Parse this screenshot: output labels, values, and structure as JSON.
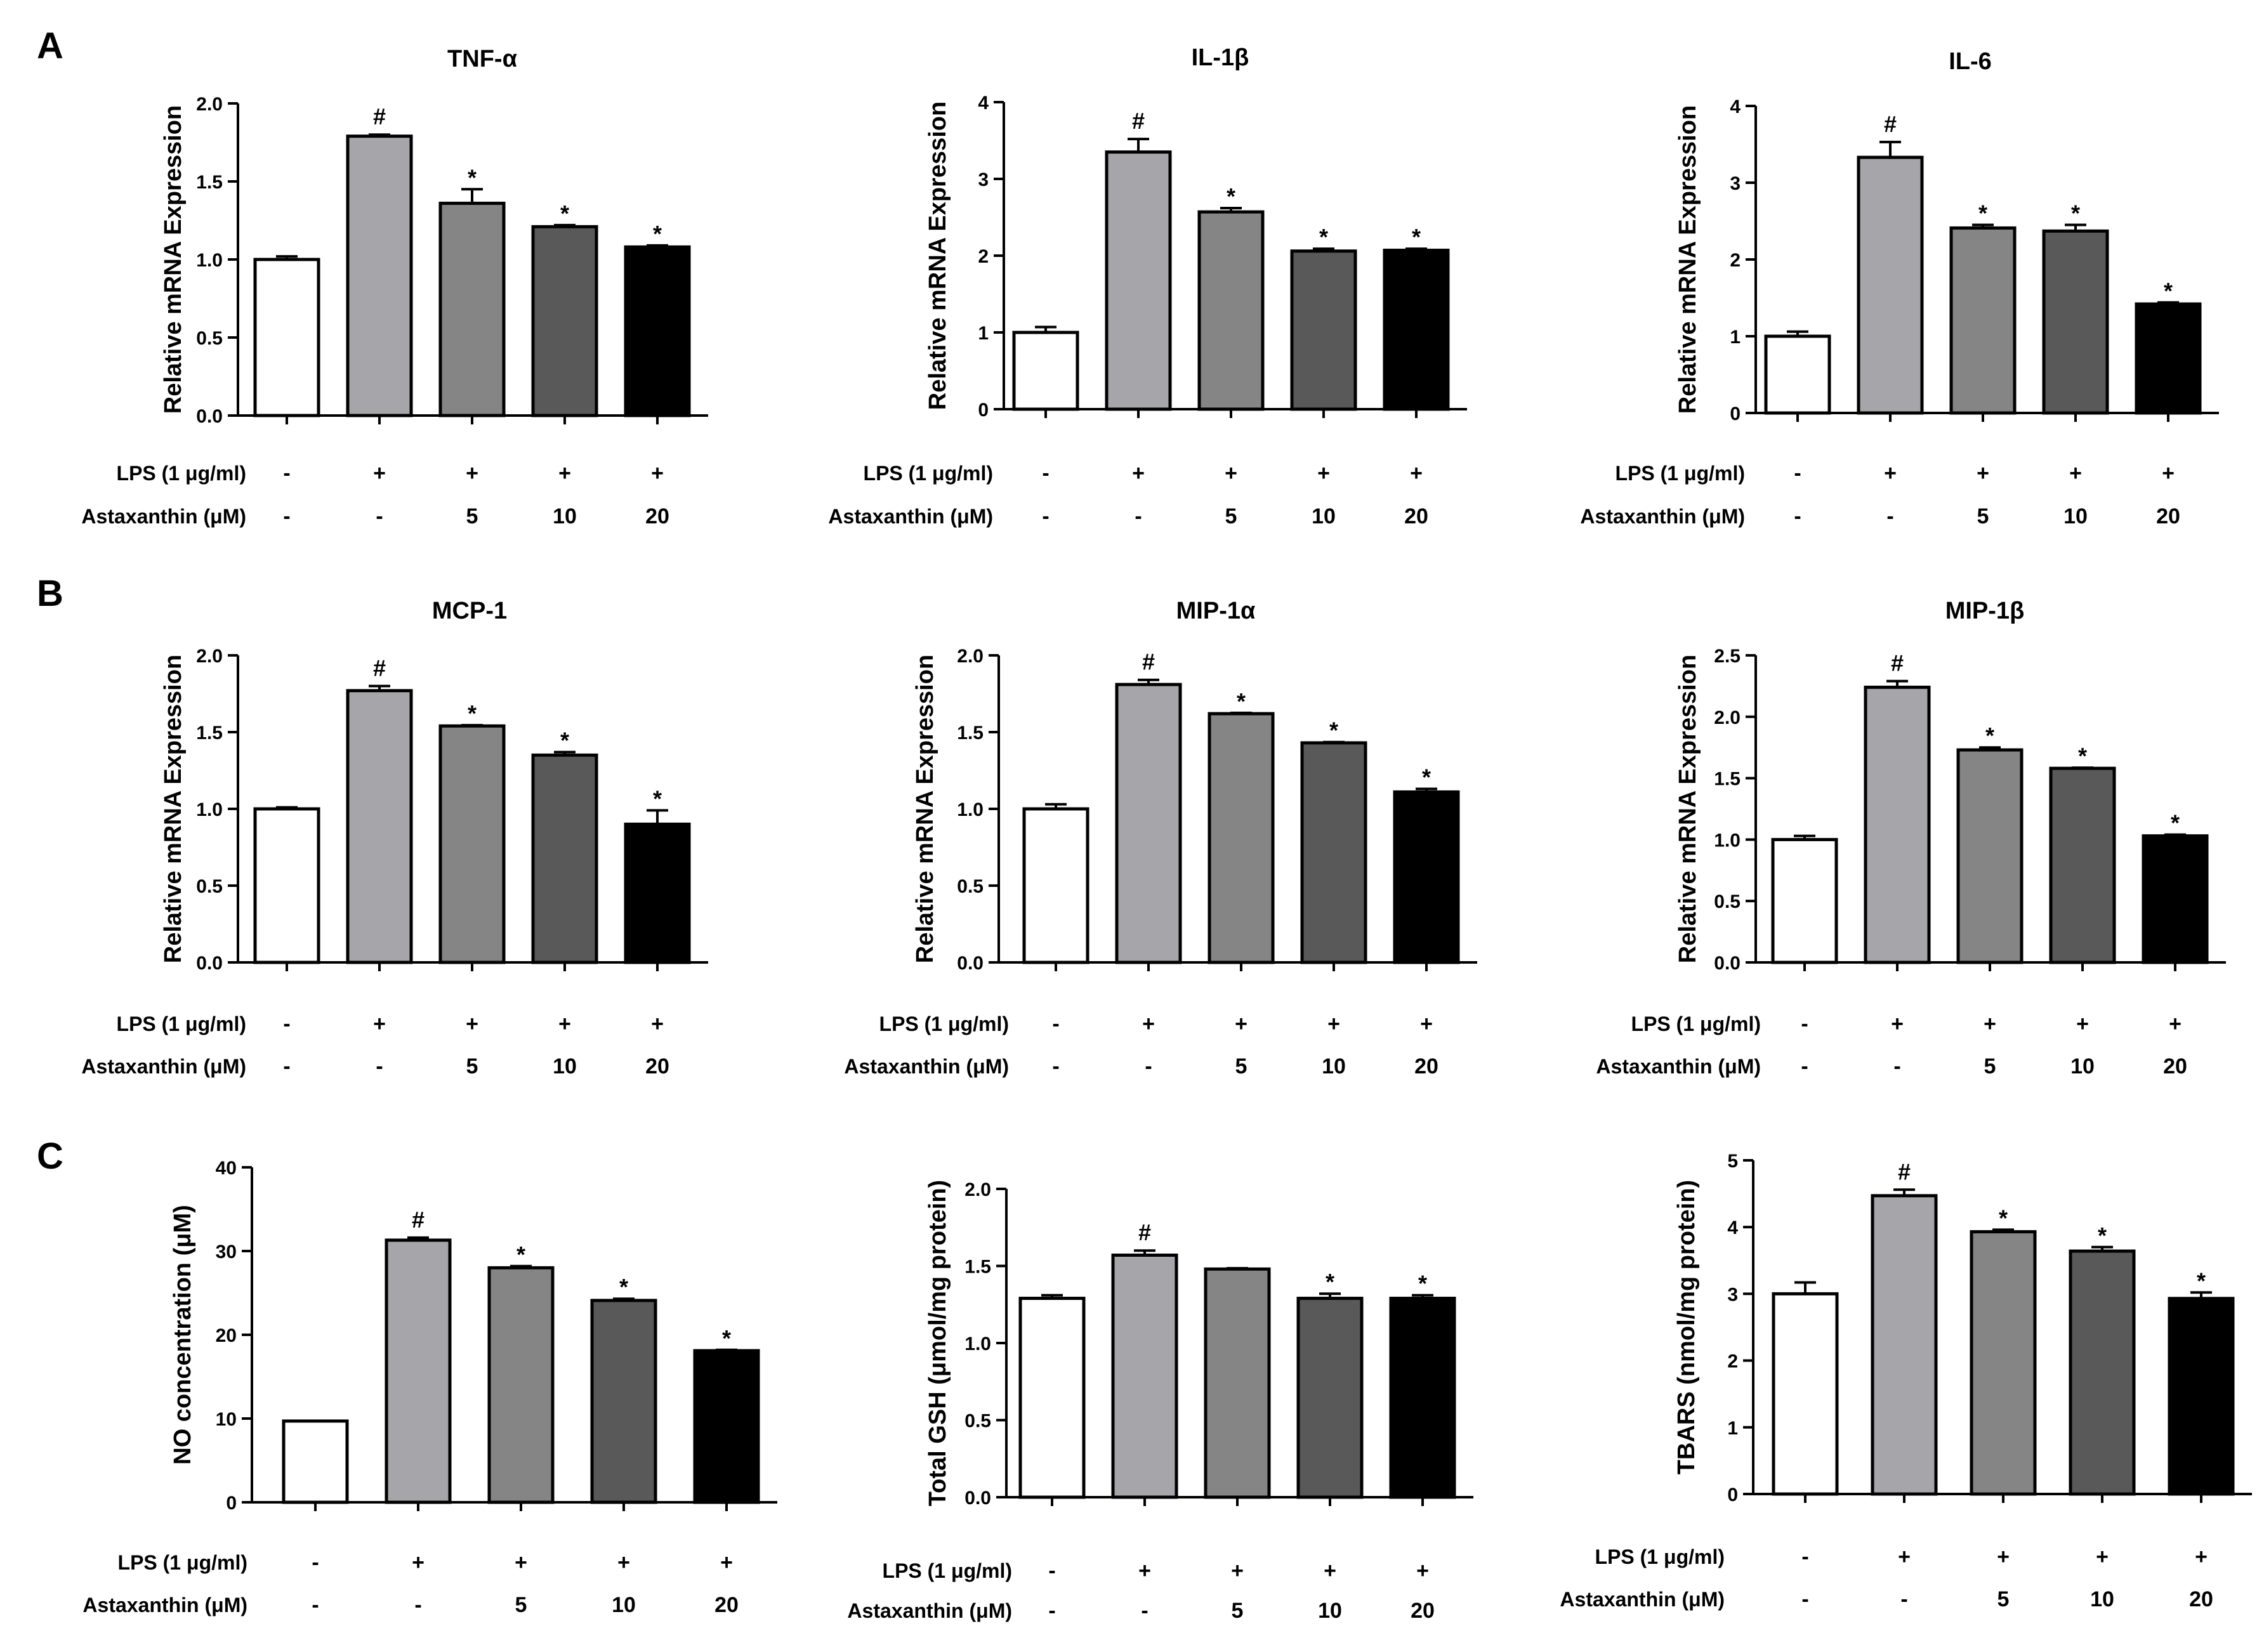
{
  "panel_labels": [
    "A",
    "B",
    "C"
  ],
  "condition_labels": {
    "lps": "LPS (1 μg/ml)",
    "astaxanthin": "Astaxanthin (μM)",
    "lps_values": [
      "-",
      "+",
      "+",
      "+",
      "+"
    ],
    "astaxanthin_values": [
      "-",
      "-",
      "5",
      "10",
      "20"
    ]
  },
  "bar_colors": [
    "#ffffff",
    "#a6a6aa",
    "#858585",
    "#595959",
    "#000000"
  ],
  "chart_data": [
    {
      "type": "bar",
      "panel": "A",
      "title": "TNF-α",
      "ylabel": "Relative mRNA Expression",
      "ylim": [
        0,
        2.0
      ],
      "yticks": [
        "0.0",
        "0.5",
        "1.0",
        "1.5",
        "2.0"
      ],
      "values": [
        1.0,
        1.79,
        1.36,
        1.21,
        1.08
      ],
      "errors": [
        0.02,
        0.01,
        0.09,
        0.01,
        0.01
      ],
      "annotations": [
        "",
        "#",
        "*",
        "*",
        "*"
      ]
    },
    {
      "type": "bar",
      "panel": "A",
      "title": "IL-1β",
      "ylabel": "Relative mRNA Expression",
      "ylim": [
        0,
        4
      ],
      "yticks": [
        "0",
        "1",
        "2",
        "3",
        "4"
      ],
      "values": [
        1.0,
        3.35,
        2.57,
        2.06,
        2.07
      ],
      "errors": [
        0.07,
        0.17,
        0.05,
        0.03,
        0.02
      ],
      "annotations": [
        "",
        "#",
        "*",
        "*",
        "*"
      ]
    },
    {
      "type": "bar",
      "panel": "A",
      "title": "IL-6",
      "ylabel": "Relative mRNA Expression",
      "ylim": [
        0,
        4
      ],
      "yticks": [
        "0",
        "1",
        "2",
        "3",
        "4"
      ],
      "values": [
        1.0,
        3.33,
        2.41,
        2.37,
        1.42
      ],
      "errors": [
        0.06,
        0.2,
        0.04,
        0.08,
        0.02
      ],
      "annotations": [
        "",
        "#",
        "*",
        "*",
        "*"
      ]
    },
    {
      "type": "bar",
      "panel": "B",
      "title": "MCP-1",
      "ylabel": "Relative mRNA Expression",
      "ylim": [
        0,
        2.0
      ],
      "yticks": [
        "0.0",
        "0.5",
        "1.0",
        "1.5",
        "2.0"
      ],
      "values": [
        1.0,
        1.77,
        1.54,
        1.35,
        0.9
      ],
      "errors": [
        0.01,
        0.03,
        0.005,
        0.02,
        0.09
      ],
      "annotations": [
        "",
        "#",
        "*",
        "*",
        "*"
      ]
    },
    {
      "type": "bar",
      "panel": "B",
      "title": "MIP-1α",
      "ylabel": "Relative mRNA Expression",
      "ylim": [
        0,
        2.0
      ],
      "yticks": [
        "0.0",
        "0.5",
        "1.0",
        "1.5",
        "2.0"
      ],
      "values": [
        1.0,
        1.81,
        1.62,
        1.43,
        1.11
      ],
      "errors": [
        0.03,
        0.03,
        0.005,
        0.005,
        0.02
      ],
      "annotations": [
        "",
        "#",
        "*",
        "*",
        "*"
      ]
    },
    {
      "type": "bar",
      "panel": "B",
      "title": "MIP-1β",
      "ylabel": "Relative mRNA Expression",
      "ylim": [
        0,
        2.5
      ],
      "yticks": [
        "0.0",
        "0.5",
        "1.0",
        "1.5",
        "2.0",
        "2.5"
      ],
      "values": [
        1.0,
        2.24,
        1.73,
        1.58,
        1.03
      ],
      "errors": [
        0.03,
        0.05,
        0.02,
        0.005,
        0.01
      ],
      "annotations": [
        "",
        "#",
        "*",
        "*",
        "*"
      ]
    },
    {
      "type": "bar",
      "panel": "C",
      "title": "",
      "ylabel": "NO concentration (μM)",
      "ylim": [
        0,
        40
      ],
      "yticks": [
        "0",
        "10",
        "20",
        "30",
        "40"
      ],
      "ybase": 0,
      "values": [
        9.7,
        31.3,
        28.0,
        24.1,
        18.1
      ],
      "errors": [
        0,
        0.3,
        0.2,
        0.2,
        0.1
      ],
      "annotations": [
        "",
        "#",
        "*",
        "*",
        "*"
      ]
    },
    {
      "type": "bar",
      "panel": "C",
      "title": "",
      "ylabel": "Total GSH (μmol/mg protein)",
      "ylim": [
        0,
        2.0
      ],
      "yticks": [
        "0.0",
        "0.5",
        "1.0",
        "1.5",
        "2.0"
      ],
      "values": [
        1.29,
        1.57,
        1.48,
        1.29,
        1.29
      ],
      "errors": [
        0.02,
        0.03,
        0.005,
        0.03,
        0.02
      ],
      "annotations": [
        "",
        "#",
        "",
        "*",
        "*"
      ]
    },
    {
      "type": "bar",
      "panel": "C",
      "title": "",
      "ylabel": "TBARS (nmol/mg protein)",
      "ylim": [
        0,
        5
      ],
      "yticks": [
        "0",
        "1",
        "2",
        "3",
        "4",
        "5"
      ],
      "values": [
        3.0,
        4.47,
        3.93,
        3.64,
        2.93
      ],
      "errors": [
        0.17,
        0.09,
        0.03,
        0.06,
        0.09
      ],
      "annotations": [
        "",
        "#",
        "*",
        "*",
        "*"
      ]
    }
  ]
}
